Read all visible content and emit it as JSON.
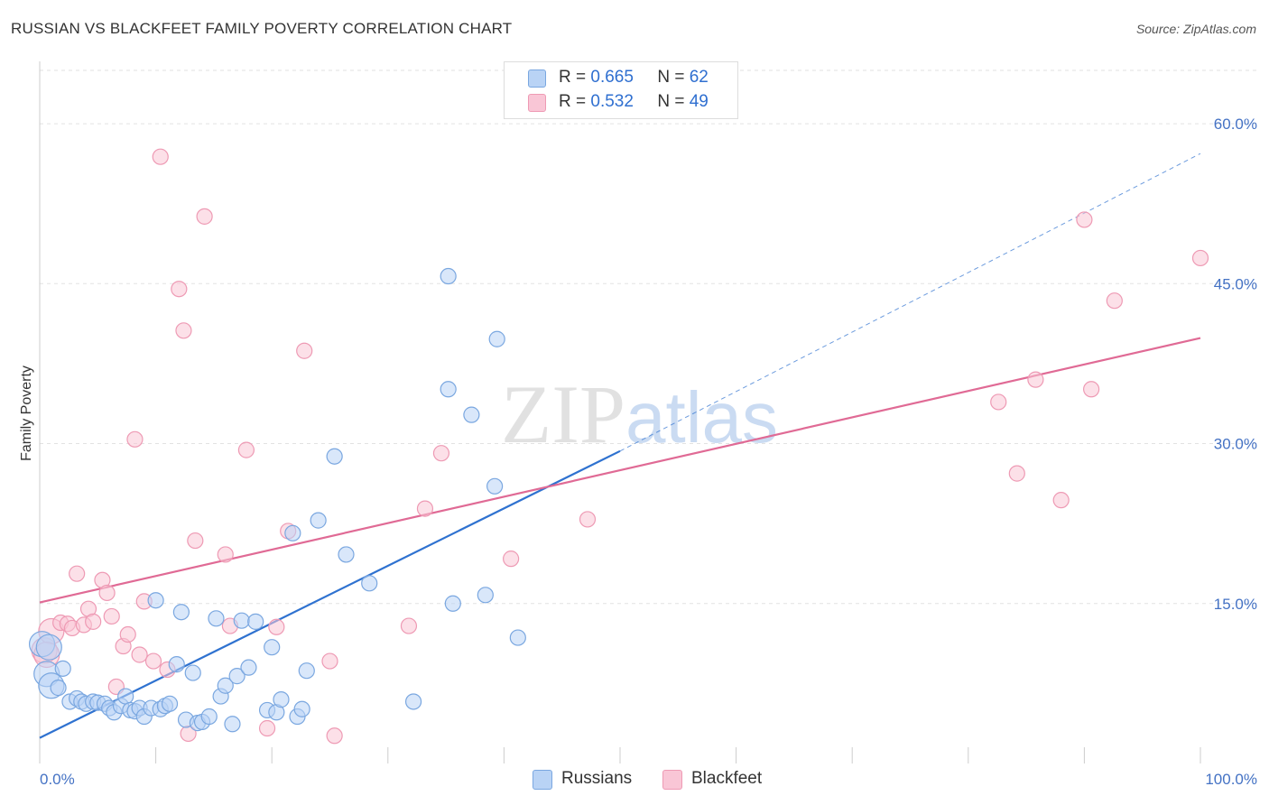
{
  "header": {
    "title": "RUSSIAN VS BLACKFEET FAMILY POVERTY CORRELATION CHART",
    "source": "Source: ZipAtlas.com"
  },
  "watermark": "ZIPatlas",
  "legend": {
    "rows": [
      {
        "r_label": "R =",
        "r_value": "0.665",
        "n_label": "N =",
        "n_value": "62"
      },
      {
        "r_label": "R =",
        "r_value": "0.532",
        "n_label": "N =",
        "n_value": "49"
      }
    ],
    "bottom": [
      "Russians",
      "Blackfeet"
    ]
  },
  "colors": {
    "russians_fill": "#b9d3f5",
    "russians_stroke": "#7aa7e0",
    "russians_line": "#2f72d0",
    "blackfeet_fill": "#f9c6d6",
    "blackfeet_stroke": "#ee9ab4",
    "blackfeet_line": "#e06a95",
    "axis_text": "#4472c4",
    "grid": "#e2e2e2"
  },
  "chart_data": {
    "type": "scatter",
    "title": "RUSSIAN VS BLACKFEET FAMILY POVERTY CORRELATION CHART",
    "xlabel": "",
    "ylabel": "Family Poverty",
    "xlim": [
      0,
      100
    ],
    "ylim": [
      0,
      65
    ],
    "x_tick_labels": [
      "0.0%",
      "100.0%"
    ],
    "y_ticks": [
      15,
      30,
      45,
      60
    ],
    "y_tick_labels": [
      "15.0%",
      "30.0%",
      "45.0%",
      "60.0%"
    ],
    "grid": true,
    "legend_position": "top-center",
    "series": [
      {
        "name": "Russians",
        "r": 0.665,
        "n": 62,
        "trend": {
          "x": [
            0,
            50
          ],
          "y": [
            2.4,
            29.3
          ],
          "dashed_extension_to": [
            100,
            57.2
          ]
        },
        "points": [
          [
            0.2,
            11.2
          ],
          [
            0.6,
            8.4
          ],
          [
            1.0,
            7.3
          ],
          [
            1.6,
            7.1
          ],
          [
            2.0,
            8.9
          ],
          [
            2.6,
            5.8
          ],
          [
            3.2,
            6.1
          ],
          [
            3.6,
            5.8
          ],
          [
            4.0,
            5.6
          ],
          [
            4.6,
            5.8
          ],
          [
            5.0,
            5.7
          ],
          [
            5.6,
            5.6
          ],
          [
            6.0,
            5.2
          ],
          [
            6.4,
            4.8
          ],
          [
            7.0,
            5.4
          ],
          [
            7.4,
            6.3
          ],
          [
            7.8,
            5.0
          ],
          [
            8.2,
            4.9
          ],
          [
            8.6,
            5.2
          ],
          [
            9.0,
            4.4
          ],
          [
            9.6,
            5.2
          ],
          [
            10.0,
            15.3
          ],
          [
            10.4,
            5.1
          ],
          [
            10.8,
            5.4
          ],
          [
            11.2,
            5.6
          ],
          [
            11.8,
            9.3
          ],
          [
            12.2,
            14.2
          ],
          [
            12.6,
            4.1
          ],
          [
            13.2,
            8.5
          ],
          [
            13.6,
            3.8
          ],
          [
            14.0,
            3.9
          ],
          [
            14.6,
            4.4
          ],
          [
            15.2,
            13.6
          ],
          [
            15.6,
            6.3
          ],
          [
            16.0,
            7.3
          ],
          [
            16.6,
            3.7
          ],
          [
            17.0,
            8.2
          ],
          [
            17.4,
            13.4
          ],
          [
            18.0,
            9.0
          ],
          [
            18.6,
            13.3
          ],
          [
            19.6,
            5.0
          ],
          [
            20.0,
            10.9
          ],
          [
            20.4,
            4.8
          ],
          [
            20.8,
            6.0
          ],
          [
            21.8,
            21.6
          ],
          [
            22.2,
            4.4
          ],
          [
            22.6,
            5.1
          ],
          [
            23.0,
            8.7
          ],
          [
            24.0,
            22.8
          ],
          [
            25.4,
            28.8
          ],
          [
            26.4,
            19.6
          ],
          [
            28.4,
            16.9
          ],
          [
            32.2,
            5.8
          ],
          [
            35.2,
            45.7
          ],
          [
            35.2,
            35.1
          ],
          [
            35.6,
            15.0
          ],
          [
            37.2,
            32.7
          ],
          [
            38.4,
            15.8
          ],
          [
            39.2,
            26.0
          ],
          [
            39.4,
            39.8
          ],
          [
            41.2,
            11.8
          ],
          [
            0.8,
            10.9
          ]
        ]
      },
      {
        "name": "Blackfeet",
        "r": 0.532,
        "n": 49,
        "trend": {
          "x": [
            0,
            100
          ],
          "y": [
            15.1,
            39.9
          ]
        },
        "points": [
          [
            0.4,
            10.6
          ],
          [
            1.0,
            12.4
          ],
          [
            1.8,
            13.2
          ],
          [
            2.4,
            13.1
          ],
          [
            2.8,
            12.7
          ],
          [
            3.2,
            17.8
          ],
          [
            3.8,
            13.0
          ],
          [
            4.2,
            14.5
          ],
          [
            4.6,
            13.3
          ],
          [
            5.4,
            17.2
          ],
          [
            5.8,
            16.0
          ],
          [
            6.2,
            13.8
          ],
          [
            6.6,
            7.2
          ],
          [
            7.2,
            11.0
          ],
          [
            7.6,
            12.1
          ],
          [
            8.2,
            30.4
          ],
          [
            8.6,
            10.2
          ],
          [
            9.0,
            15.2
          ],
          [
            9.8,
            9.6
          ],
          [
            10.4,
            56.9
          ],
          [
            11.0,
            8.8
          ],
          [
            12.0,
            44.5
          ],
          [
            12.4,
            40.6
          ],
          [
            12.8,
            2.8
          ],
          [
            13.4,
            20.9
          ],
          [
            14.2,
            51.3
          ],
          [
            16.0,
            19.6
          ],
          [
            16.4,
            12.9
          ],
          [
            17.8,
            29.4
          ],
          [
            19.6,
            3.3
          ],
          [
            20.4,
            12.8
          ],
          [
            21.4,
            21.8
          ],
          [
            22.8,
            38.7
          ],
          [
            25.0,
            9.6
          ],
          [
            25.4,
            2.6
          ],
          [
            31.8,
            12.9
          ],
          [
            33.2,
            23.9
          ],
          [
            34.6,
            29.1
          ],
          [
            40.6,
            19.2
          ],
          [
            47.2,
            22.9
          ],
          [
            82.6,
            33.9
          ],
          [
            84.2,
            27.2
          ],
          [
            85.8,
            36.0
          ],
          [
            88.0,
            24.7
          ],
          [
            90.0,
            51.0
          ],
          [
            90.6,
            35.1
          ],
          [
            92.6,
            43.4
          ],
          [
            100.0,
            47.4
          ],
          [
            0.6,
            10.2
          ]
        ]
      }
    ]
  }
}
